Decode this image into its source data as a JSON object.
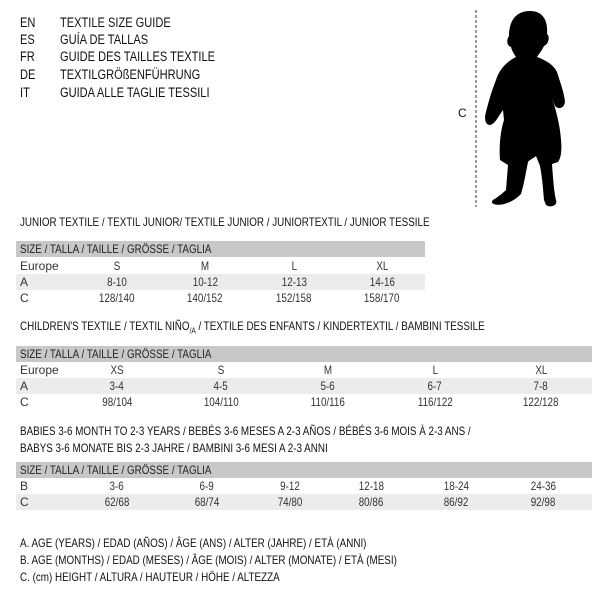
{
  "title_lines": [
    {
      "lang": "EN",
      "text": "TEXTILE SIZE GUIDE"
    },
    {
      "lang": "ES",
      "text": "GUÍA DE TALLAS"
    },
    {
      "lang": "FR",
      "text": "GUIDE DES TAILLES TEXTILE"
    },
    {
      "lang": "DE",
      "text": "TEXTILGRÖßENFÜHRUNG"
    },
    {
      "lang": "IT",
      "text": "GUIDA ALLE TAGLIE TESSILI"
    }
  ],
  "figure": {
    "measure_label": "C",
    "icon": "child-silhouette-icon"
  },
  "size_header": "SIZE / TALLA / TAILLE / GRÖSSE / TAGLIA",
  "junior": {
    "title": "JUNIOR TEXTILE / TEXTIL JUNIOR/ TEXTILE JUNIOR / JUNIORTEXTIL / JUNIOR TESSILE",
    "rows": [
      {
        "label": "Europe",
        "values": [
          "S",
          "M",
          "L",
          "XL"
        ]
      },
      {
        "label": "A",
        "values": [
          "8-10",
          "10-12",
          "12-13",
          "14-16"
        ]
      },
      {
        "label": "C",
        "values": [
          "128/140",
          "140/152",
          "152/158",
          "158/170"
        ]
      }
    ]
  },
  "children": {
    "title_a": "CHILDREN'S TEXTILE / TEXTIL NIÑO",
    "title_sub": "/A",
    "title_b": " / TEXTILE DES ENFANTS / KINDERTEXTIL / BAMBINI TESSILE",
    "rows": [
      {
        "label": "Europe",
        "values": [
          "XS",
          "S",
          "M",
          "L",
          "XL"
        ]
      },
      {
        "label": "A",
        "values": [
          "3-4",
          "4-5",
          "5-6",
          "6-7",
          "7-8"
        ]
      },
      {
        "label": "C",
        "values": [
          "98/104",
          "104/110",
          "110/116",
          "116/122",
          "122/128"
        ]
      }
    ]
  },
  "babies": {
    "title_line1": "BABIES 3-6 MONTH TO 2-3 YEARS / BEBÉS 3-6 MESES A 2-3 AÑOS / BÉBÉS 3-6 MOIS À 2-3 ANS /",
    "title_line2": "BABYS 3-6 MONATE BIS 2-3 JAHRE / BAMBINI 3-6 MESI A 2-3 ANNI",
    "rows": [
      {
        "label": "B",
        "values": [
          "3-6",
          "6-9",
          "9-12",
          "12-18",
          "18-24",
          "24-36"
        ]
      },
      {
        "label": "C",
        "values": [
          "62/68",
          "68/74",
          "74/80",
          "80/86",
          "86/92",
          "92/98"
        ]
      }
    ]
  },
  "legend": [
    "A. AGE (YEARS) / EDAD (AÑOS) / ÂGE (ANS) / ALTER (JAHRE) / ETÀ (ANNI)",
    "B. AGE (MONTHS) / EDAD (MESES) / ÂGE (MOIS) / ALTER (MONATE) / ETÀ (MESI)",
    "C. (cm) HEIGHT / ALTURA / HAUTEUR / HÖHE / ALTEZZA"
  ],
  "colors": {
    "header_bg": "#c8c8c8",
    "stripe_bg": "#ececec"
  }
}
